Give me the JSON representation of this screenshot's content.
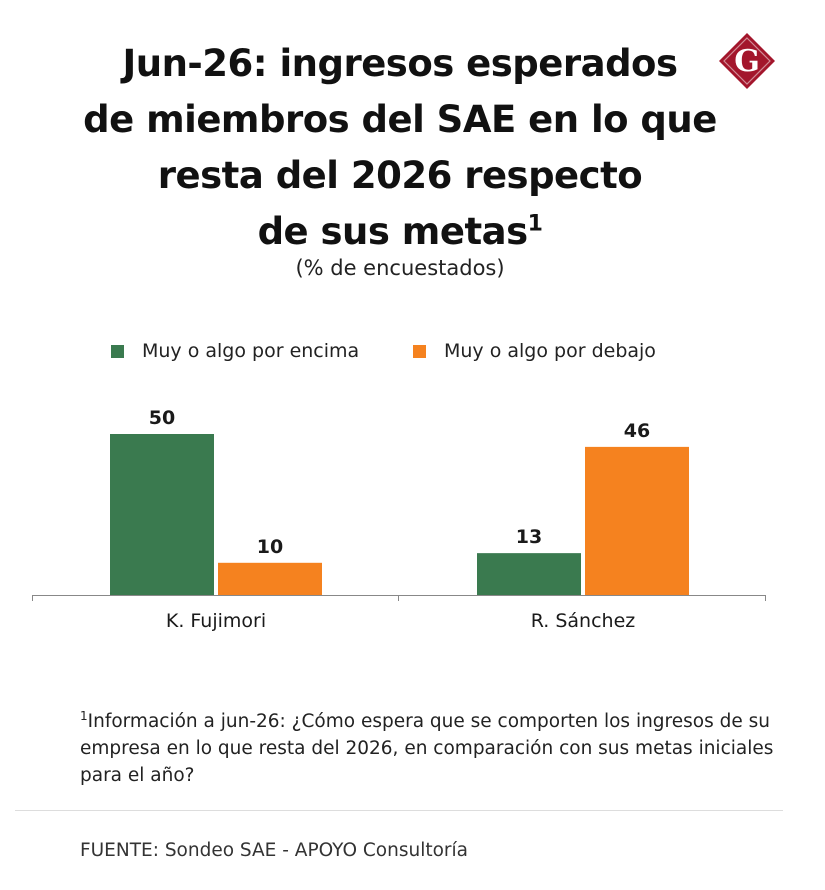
{
  "title": {
    "line1": "Jun-26: ingresos esperados",
    "line2": "de miembros del SAE en lo que",
    "line3": "resta del 2026 respecto",
    "line4": "de sus metas",
    "superscript": "1"
  },
  "logo": {
    "letter": "G",
    "icon": "gestion-logo-icon"
  },
  "subtitle": "(% de encuestados)",
  "legend": [
    {
      "label": "Muy o algo por encima",
      "color": "#3a7a4f"
    },
    {
      "label": "Muy o algo por debajo",
      "color": "#f5821f"
    }
  ],
  "chart_data": {
    "type": "bar",
    "categories": [
      "K. Fujimori",
      "R. Sánchez"
    ],
    "series": [
      {
        "name": "Muy o algo por encima",
        "values": [
          50,
          13
        ],
        "color": "#3a7a4f"
      },
      {
        "name": "Muy o algo por debajo",
        "values": [
          10,
          46
        ],
        "color": "#f5821f"
      }
    ],
    "ylim": [
      0,
      55
    ],
    "grid": false,
    "legend_position": "top"
  },
  "note": {
    "superscript": "1",
    "text": "Información a jun-26: ¿Cómo espera que se comporten los ingresos de su empresa en lo que resta del 2026, en comparación con sus metas iniciales para el año?"
  },
  "source": "FUENTE: Sondeo SAE - APOYO Consultoría"
}
